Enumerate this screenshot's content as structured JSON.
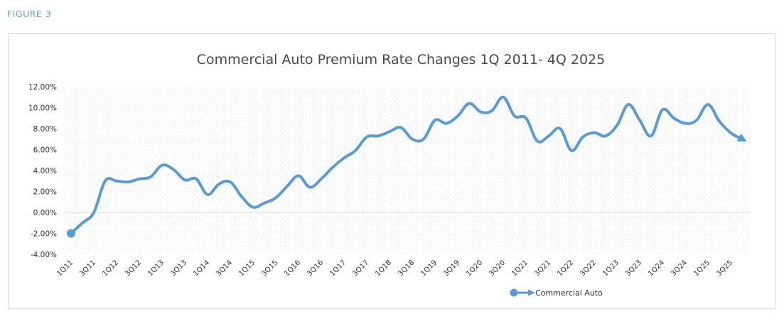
{
  "figure_label": "FIGURE 3",
  "chart_data": {
    "type": "line",
    "title": "Commercial Auto Premium Rate Changes 1Q 2011- 4Q 2025",
    "xlabel": "",
    "ylabel": "",
    "ylim": [
      -4,
      12
    ],
    "y_ticks": [
      "12.00%",
      "10.00%",
      "8.00%",
      "6.00%",
      "4.00%",
      "2.00%",
      "0.00%",
      "-2.00%",
      "-4.00%"
    ],
    "x_tick_labels": [
      "1Q11",
      "3Q11",
      "1Q12",
      "3Q12",
      "1Q13",
      "3Q13",
      "1Q14",
      "3Q14",
      "1Q15",
      "3Q15",
      "1Q16",
      "3Q16",
      "1Q17",
      "3Q17",
      "1Q18",
      "3Q18",
      "1Q19",
      "3Q19",
      "1Q20",
      "3Q20",
      "1Q21",
      "3Q21",
      "1Q22",
      "3Q22",
      "1Q23",
      "3Q23",
      "1Q24",
      "3Q24",
      "1Q25",
      "3Q25"
    ],
    "categories": [
      "1Q11",
      "2Q11",
      "3Q11",
      "4Q11",
      "1Q12",
      "2Q12",
      "3Q12",
      "4Q12",
      "1Q13",
      "2Q13",
      "3Q13",
      "4Q13",
      "1Q14",
      "2Q14",
      "3Q14",
      "4Q14",
      "1Q15",
      "2Q15",
      "3Q15",
      "4Q15",
      "1Q16",
      "2Q16",
      "3Q16",
      "4Q16",
      "1Q17",
      "2Q17",
      "3Q17",
      "4Q17",
      "1Q18",
      "2Q18",
      "3Q18",
      "4Q18",
      "1Q19",
      "2Q19",
      "3Q19",
      "4Q19",
      "1Q20",
      "2Q20",
      "3Q20",
      "4Q20",
      "1Q21",
      "2Q21",
      "3Q21",
      "4Q21",
      "1Q22",
      "2Q22",
      "3Q22",
      "4Q22",
      "1Q23",
      "2Q23",
      "3Q23",
      "4Q23",
      "1Q24",
      "2Q24",
      "3Q24",
      "4Q24",
      "1Q25",
      "2Q25",
      "3Q25",
      "4Q25"
    ],
    "series": [
      {
        "name": "Commercial Auto",
        "color": "#5b9bd5",
        "values": [
          -2.0,
          -1.0,
          0.0,
          3.0,
          3.0,
          2.9,
          3.2,
          3.4,
          4.5,
          4.1,
          3.1,
          3.2,
          1.7,
          2.7,
          2.9,
          1.5,
          0.5,
          0.9,
          1.4,
          2.5,
          3.5,
          2.4,
          3.2,
          4.3,
          5.2,
          5.9,
          7.2,
          7.3,
          7.7,
          8.1,
          7.0,
          7.0,
          8.8,
          8.5,
          9.2,
          10.4,
          9.6,
          9.7,
          11.0,
          9.2,
          9.0,
          6.8,
          7.3,
          8.0,
          5.9,
          7.2,
          7.6,
          7.3,
          8.3,
          10.3,
          8.8,
          7.3,
          9.8,
          9.0,
          8.5,
          8.8,
          10.3,
          8.7,
          7.6,
          7.0
        ]
      }
    ],
    "legend": {
      "label": "Commercial Auto",
      "position": "bottom-center"
    },
    "grid": false
  }
}
